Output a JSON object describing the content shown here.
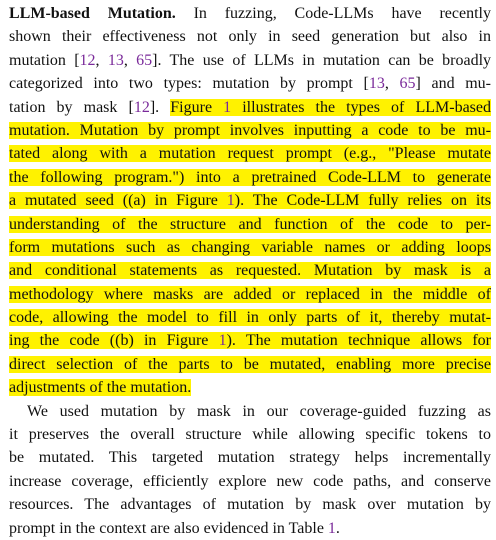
{
  "paragraph1": {
    "heading": "LLM-based Mutation.",
    "lines": [
      {
        "segments": [
          {
            "text": "In fuzzing, Code-LLMs have recently",
            "hl": false
          }
        ]
      },
      {
        "segments": [
          {
            "text": "shown their effectiveness not only in seed generation but also in",
            "hl": false
          }
        ]
      },
      {
        "segments": [
          {
            "text": "mutation [",
            "hl": false
          },
          {
            "text": "12",
            "hl": false,
            "cite": true
          },
          {
            "text": ", ",
            "hl": false
          },
          {
            "text": "13",
            "hl": false,
            "cite": true
          },
          {
            "text": ", ",
            "hl": false
          },
          {
            "text": "65",
            "hl": false,
            "cite": true
          },
          {
            "text": "]. The use of LLMs in mutation can be broadly",
            "hl": false
          }
        ]
      },
      {
        "segments": [
          {
            "text": "categorized into two types: mutation by prompt [",
            "hl": false
          },
          {
            "text": "13",
            "hl": false,
            "cite": true
          },
          {
            "text": ", ",
            "hl": false
          },
          {
            "text": "65",
            "hl": false,
            "cite": true
          },
          {
            "text": "] and mu-",
            "hl": false
          }
        ]
      },
      {
        "segments": [
          {
            "text": "tation by mask [",
            "hl": false
          },
          {
            "text": "12",
            "hl": false,
            "cite": true
          },
          {
            "text": "]. ",
            "hl": false
          },
          {
            "text": "Figure ",
            "hl": true
          },
          {
            "text": "1",
            "hl": true,
            "cite": true
          },
          {
            "text": " illustrates the types of LLM-based",
            "hl": true
          }
        ]
      },
      {
        "segments": [
          {
            "text": "mutation. Mutation by prompt involves inputting a code to be mu-",
            "hl": true
          }
        ]
      },
      {
        "segments": [
          {
            "text": "tated along with a mutation request prompt (e.g., \"Please mutate",
            "hl": true
          }
        ]
      },
      {
        "segments": [
          {
            "text": "the following program.\") into a pretrained Code-LLM to generate",
            "hl": true
          }
        ]
      },
      {
        "segments": [
          {
            "text": "a mutated seed ((a) in Figure ",
            "hl": true
          },
          {
            "text": "1",
            "hl": true,
            "cite": true
          },
          {
            "text": "). The Code-LLM fully relies on its",
            "hl": true
          }
        ]
      },
      {
        "segments": [
          {
            "text": "understanding of the structure and function of the code to per-",
            "hl": true
          }
        ]
      },
      {
        "segments": [
          {
            "text": "form mutations such as changing variable names or adding loops",
            "hl": true
          }
        ]
      },
      {
        "segments": [
          {
            "text": "and conditional statements as requested. Mutation by mask is a",
            "hl": true
          }
        ]
      },
      {
        "segments": [
          {
            "text": "methodology where masks are added or replaced in the middle of",
            "hl": true
          }
        ]
      },
      {
        "segments": [
          {
            "text": "code, allowing the model to fill in only parts of it, thereby mutat-",
            "hl": true
          }
        ]
      },
      {
        "segments": [
          {
            "text": "ing the code ((b) in Figure ",
            "hl": true
          },
          {
            "text": "1",
            "hl": true,
            "cite": true
          },
          {
            "text": "). The mutation technique allows for",
            "hl": true
          }
        ]
      },
      {
        "segments": [
          {
            "text": "direct selection of the parts to be mutated, enabling more precise",
            "hl": true
          }
        ]
      },
      {
        "segments": [
          {
            "text": "adjustments of the mutation.",
            "hl": true
          }
        ]
      }
    ]
  },
  "paragraph2": {
    "lines": [
      {
        "segments": [
          {
            "text": "We used mutation by mask in our coverage-guided fuzzing as",
            "hl": false
          }
        ]
      },
      {
        "segments": [
          {
            "text": "it preserves the overall structure while allowing specific tokens to",
            "hl": false
          }
        ]
      },
      {
        "segments": [
          {
            "text": "be mutated. This targeted mutation strategy helps incrementally",
            "hl": false
          }
        ]
      },
      {
        "segments": [
          {
            "text": "increase coverage, efficiently explore new code paths, and conserve",
            "hl": false
          }
        ]
      },
      {
        "segments": [
          {
            "text": "resources. The advantages of mutation by mask over mutation by",
            "hl": false
          }
        ]
      },
      {
        "segments": [
          {
            "text": "prompt in the context are also evidenced in Table ",
            "hl": false
          },
          {
            "text": "1",
            "hl": false,
            "cite": true
          },
          {
            "text": ".",
            "hl": false
          }
        ]
      }
    ]
  }
}
